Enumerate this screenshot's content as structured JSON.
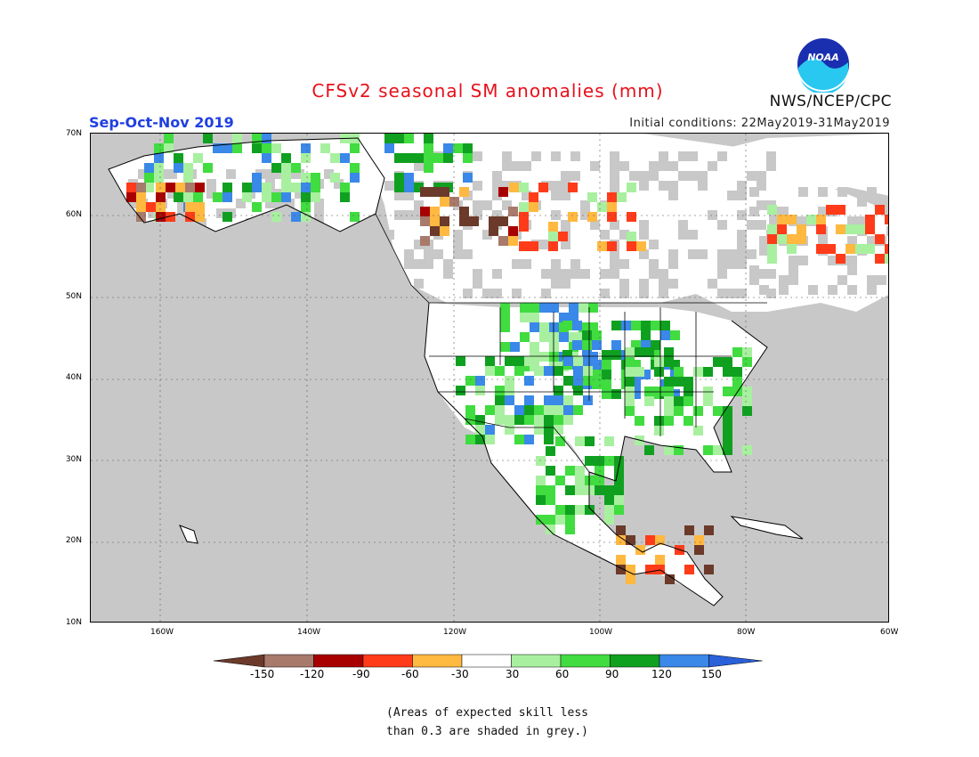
{
  "header": {
    "title": "CFSv2 seasonal SM anomalies (mm)",
    "season": "Sep-Oct-Nov 2019",
    "initial_conditions": "Initial conditions: 22May2019-31May2019",
    "agency": "NWS/NCEP/CPC",
    "logo_text": "NOAA"
  },
  "map": {
    "region": "North America",
    "lat_labels": [
      "70N",
      "60N",
      "50N",
      "40N",
      "30N",
      "20N",
      "10N"
    ],
    "lon_labels": [
      "160W",
      "140W",
      "120W",
      "100W",
      "80W",
      "60W"
    ],
    "grey_meaning": "expected skill less than 0.3"
  },
  "legend": {
    "ticks": [
      "-150",
      "-120",
      "-90",
      "-60",
      "-30",
      "30",
      "60",
      "90",
      "120",
      "150"
    ],
    "colors": [
      "#6b3a2a",
      "#a87a6c",
      "#a80000",
      "#ff3b1a",
      "#ffb840",
      "#ffffff",
      "#a8f0a0",
      "#40dc40",
      "#10a020",
      "#3a88e8",
      "#2a60d8"
    ],
    "note_line1": "(Areas of expected skill less",
    "note_line2": "than 0.3 are shaded in grey.)"
  },
  "colors": {
    "title": "#e8101a",
    "season": "#2040e0",
    "land_grey": "#c8c8c8",
    "ocean_grey": "#c8c8c8"
  }
}
